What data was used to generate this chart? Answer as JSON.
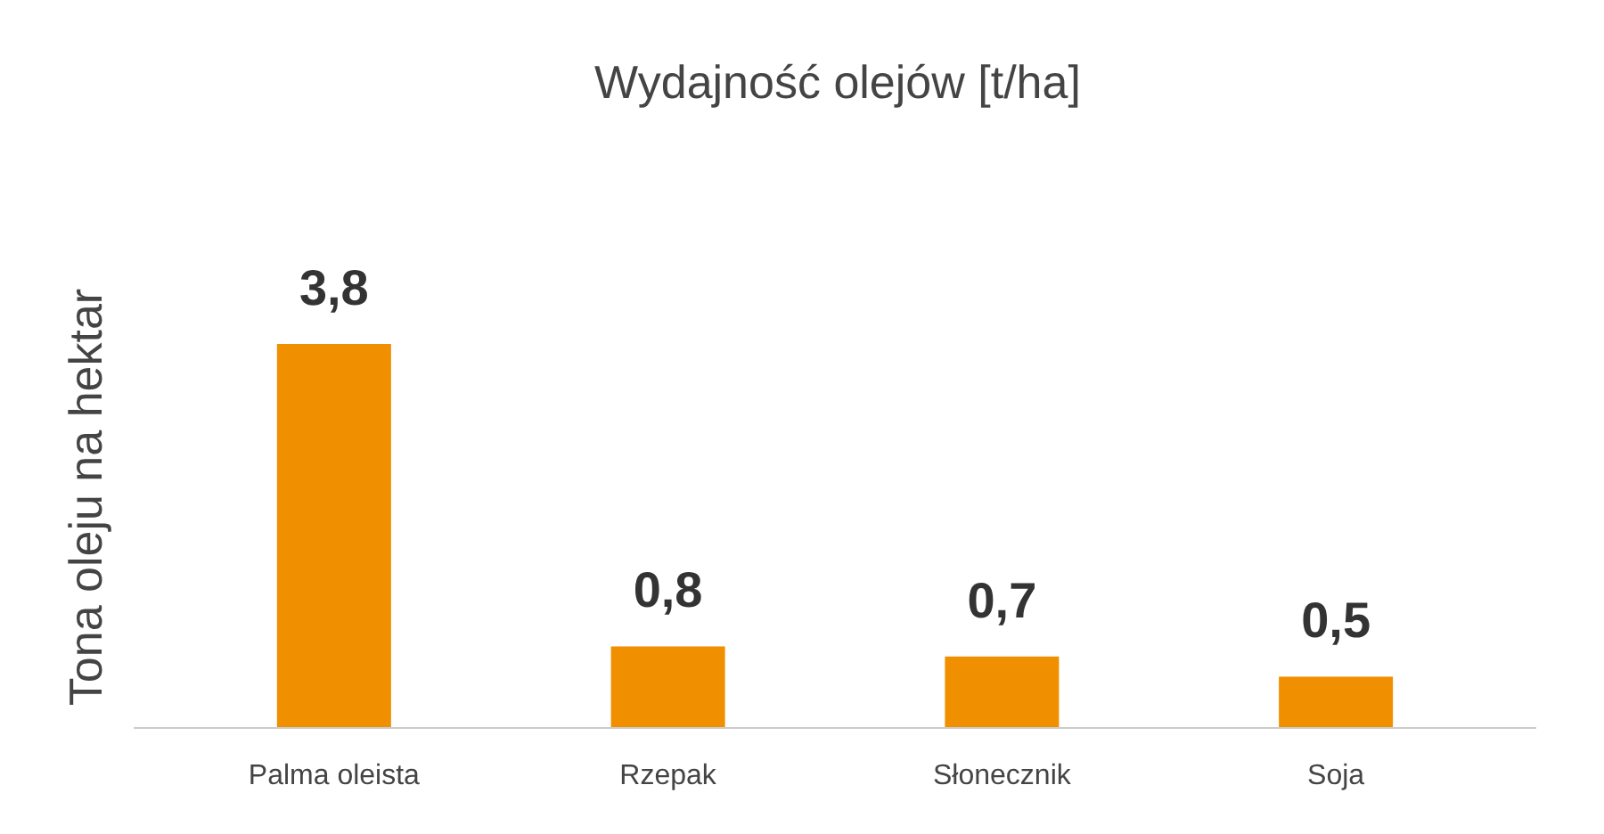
{
  "chart_data": {
    "type": "bar",
    "title": "Wydajność olejów [t/ha]",
    "ylabel": "Tona oleju na hektar",
    "categories": [
      "Palma oleista",
      "Rzepak",
      "Słonecznik",
      "Soja"
    ],
    "values": [
      3.8,
      0.8,
      0.7,
      0.5
    ],
    "value_labels": [
      "3,8",
      "0,8",
      "0,7",
      "0,5"
    ],
    "color": "#f09000"
  }
}
